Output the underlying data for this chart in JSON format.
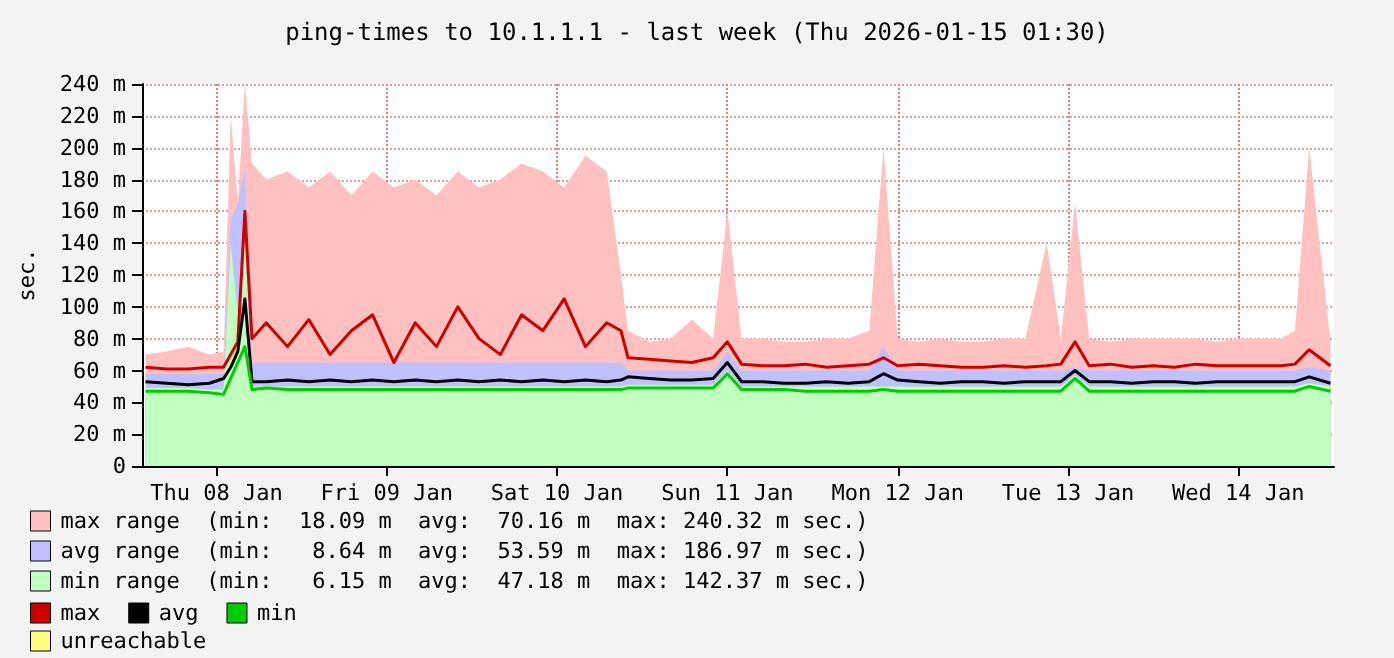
{
  "chart_data": {
    "type": "line",
    "title": "ping-times to 10.1.1.1 - last week (Thu 2026-01-15 01:30)",
    "ylabel": "sec.",
    "x": [
      "2026-01-08T02:00",
      "2026-01-08T05:00",
      "2026-01-08T08:00",
      "2026-01-08T11:00",
      "2026-01-08T13:00",
      "2026-01-08T14:00",
      "2026-01-08T15:00",
      "2026-01-08T16:00",
      "2026-01-08T17:00",
      "2026-01-08T19:00",
      "2026-01-08T22:00",
      "2026-01-09T01:00",
      "2026-01-09T04:00",
      "2026-01-09T07:00",
      "2026-01-09T10:00",
      "2026-01-09T13:00",
      "2026-01-09T16:00",
      "2026-01-09T19:00",
      "2026-01-09T22:00",
      "2026-01-10T01:00",
      "2026-01-10T04:00",
      "2026-01-10T07:00",
      "2026-01-10T10:00",
      "2026-01-10T13:00",
      "2026-01-10T16:00",
      "2026-01-10T19:00",
      "2026-01-10T21:00",
      "2026-01-10T22:00",
      "2026-01-11T01:00",
      "2026-01-11T04:00",
      "2026-01-11T07:00",
      "2026-01-11T10:00",
      "2026-01-11T12:00",
      "2026-01-11T14:00",
      "2026-01-11T17:00",
      "2026-01-11T20:00",
      "2026-01-11T23:00",
      "2026-01-12T02:00",
      "2026-01-12T05:00",
      "2026-01-12T08:00",
      "2026-01-12T10:00",
      "2026-01-12T12:00",
      "2026-01-12T15:00",
      "2026-01-12T18:00",
      "2026-01-12T21:00",
      "2026-01-13T00:00",
      "2026-01-13T03:00",
      "2026-01-13T06:00",
      "2026-01-13T09:00",
      "2026-01-13T11:00",
      "2026-01-13T13:00",
      "2026-01-13T15:00",
      "2026-01-13T18:00",
      "2026-01-13T21:00",
      "2026-01-14T00:00",
      "2026-01-14T03:00",
      "2026-01-14T06:00",
      "2026-01-14T09:00",
      "2026-01-14T12:00",
      "2026-01-14T15:00",
      "2026-01-14T18:00",
      "2026-01-14T20:00",
      "2026-01-14T22:00",
      "2026-01-15T01:00"
    ],
    "series": [
      {
        "type": "area",
        "name": "max range  (min:  18.09 m  avg:  70.16 m  max: 240.32 m sec.)",
        "color": "#ffc0c0",
        "values": [
          70,
          72,
          75,
          70,
          72,
          220,
          165,
          240,
          190,
          180,
          185,
          175,
          185,
          170,
          185,
          175,
          180,
          170,
          185,
          175,
          180,
          190,
          185,
          175,
          195,
          185,
          120,
          85,
          78,
          80,
          92,
          80,
          160,
          80,
          80,
          78,
          78,
          80,
          80,
          85,
          200,
          80,
          78,
          80,
          78,
          78,
          80,
          80,
          140,
          80,
          165,
          80,
          78,
          80,
          80,
          80,
          80,
          78,
          80,
          80,
          80,
          85,
          200,
          78
        ]
      },
      {
        "type": "area",
        "name": "avg range  (min:   8.64 m  avg:  53.59 m  max: 186.97 m sec.)",
        "color": "#c0c0ff",
        "values": [
          58,
          58,
          58,
          58,
          58,
          155,
          165,
          187,
          65,
          65,
          65,
          65,
          65,
          65,
          65,
          65,
          65,
          65,
          65,
          65,
          65,
          65,
          65,
          65,
          65,
          65,
          65,
          60,
          60,
          60,
          60,
          60,
          72,
          60,
          60,
          60,
          60,
          60,
          60,
          60,
          75,
          60,
          60,
          60,
          60,
          60,
          60,
          60,
          60,
          60,
          62,
          60,
          60,
          60,
          60,
          60,
          60,
          60,
          60,
          60,
          60,
          60,
          62,
          60
        ]
      },
      {
        "type": "area",
        "name": "min range  (min:   6.15 m  avg:  47.18 m  max: 142.37 m sec.)",
        "color": "#c0ffc0",
        "values": [
          49,
          49,
          49,
          48,
          48,
          140,
          95,
          142,
          50,
          50,
          50,
          50,
          50,
          50,
          50,
          50,
          50,
          50,
          50,
          50,
          50,
          50,
          50,
          50,
          50,
          50,
          50,
          51,
          51,
          51,
          51,
          51,
          60,
          50,
          50,
          50,
          50,
          50,
          50,
          50,
          50,
          50,
          50,
          50,
          50,
          50,
          50,
          50,
          50,
          50,
          57,
          50,
          50,
          50,
          50,
          50,
          50,
          50,
          50,
          50,
          50,
          50,
          52,
          50
        ]
      },
      {
        "name": "max",
        "color": "#cc0000",
        "values": [
          62,
          61,
          61,
          62,
          62,
          70,
          78,
          160,
          80,
          90,
          75,
          92,
          70,
          85,
          95,
          65,
          90,
          75,
          100,
          80,
          70,
          95,
          85,
          105,
          75,
          90,
          85,
          68,
          67,
          66,
          65,
          68,
          78,
          64,
          63,
          63,
          64,
          62,
          63,
          64,
          68,
          63,
          64,
          63,
          62,
          62,
          63,
          62,
          63,
          64,
          78,
          63,
          64,
          62,
          63,
          62,
          64,
          63,
          63,
          63,
          63,
          64,
          73,
          63
        ]
      },
      {
        "name": "avg",
        "color": "#000000",
        "values": [
          53,
          52,
          51,
          52,
          55,
          62,
          72,
          105,
          53,
          53,
          54,
          53,
          54,
          53,
          54,
          53,
          54,
          53,
          54,
          53,
          54,
          53,
          54,
          53,
          54,
          53,
          54,
          56,
          55,
          54,
          54,
          55,
          65,
          53,
          53,
          52,
          52,
          53,
          52,
          53,
          58,
          54,
          53,
          52,
          53,
          53,
          52,
          53,
          53,
          53,
          60,
          53,
          53,
          52,
          53,
          53,
          52,
          53,
          53,
          53,
          53,
          53,
          56,
          52
        ]
      },
      {
        "name": "min",
        "color": "#00cc00",
        "values": [
          47,
          47,
          47,
          46,
          45,
          55,
          65,
          75,
          48,
          49,
          48,
          48,
          48,
          48,
          48,
          48,
          48,
          48,
          48,
          48,
          48,
          48,
          48,
          48,
          48,
          48,
          48,
          49,
          49,
          49,
          49,
          49,
          58,
          48,
          48,
          48,
          47,
          47,
          47,
          47,
          48,
          47,
          47,
          47,
          47,
          47,
          47,
          47,
          47,
          47,
          55,
          47,
          47,
          47,
          47,
          47,
          47,
          47,
          47,
          47,
          47,
          47,
          50,
          47
        ]
      },
      {
        "type": "area",
        "name": "unreachable",
        "color": "#ffff80",
        "values": [
          null,
          null,
          null,
          null,
          null,
          null,
          null,
          null,
          null,
          null,
          null,
          null,
          null,
          null,
          null,
          null,
          null,
          null,
          null,
          null,
          null,
          null,
          null,
          null,
          null,
          null,
          null,
          null,
          null,
          null,
          null,
          null,
          null,
          null,
          null,
          null,
          null,
          null,
          null,
          null,
          null,
          null,
          null,
          null,
          null,
          null,
          null,
          null,
          null,
          null,
          null,
          null,
          null,
          null,
          null,
          null,
          null,
          null,
          null,
          null,
          null,
          null,
          null,
          null
        ]
      }
    ],
    "xlim": [
      "2026-01-08T01:30",
      "2026-01-15T01:30"
    ],
    "xticks": [
      {
        "value": "2026-01-08T12:00",
        "label": "Thu 08 Jan"
      },
      {
        "value": "2026-01-09T12:00",
        "label": "Fri 09 Jan"
      },
      {
        "value": "2026-01-10T12:00",
        "label": "Sat 10 Jan"
      },
      {
        "value": "2026-01-11T12:00",
        "label": "Sun 11 Jan"
      },
      {
        "value": "2026-01-12T12:00",
        "label": "Mon 12 Jan"
      },
      {
        "value": "2026-01-13T12:00",
        "label": "Tue 13 Jan"
      },
      {
        "value": "2026-01-14T12:00",
        "label": "Wed 14 Jan"
      }
    ],
    "ylim": [
      0,
      240
    ],
    "yticks": [
      0,
      {
        "value": 20,
        "label": "20 m"
      },
      {
        "value": 40,
        "label": "40 m"
      },
      {
        "value": 60,
        "label": "60 m"
      },
      {
        "value": 80,
        "label": "80 m"
      },
      {
        "value": 100,
        "label": "100 m"
      },
      {
        "value": 120,
        "label": "120 m"
      },
      {
        "value": 140,
        "label": "140 m"
      },
      {
        "value": 160,
        "label": "160 m"
      },
      {
        "value": 180,
        "label": "180 m"
      },
      {
        "value": 200,
        "label": "200 m"
      },
      {
        "value": 220,
        "label": "220 m"
      },
      {
        "value": 240,
        "label": "240 m"
      }
    ],
    "grid": true,
    "legend": "bottom left"
  }
}
